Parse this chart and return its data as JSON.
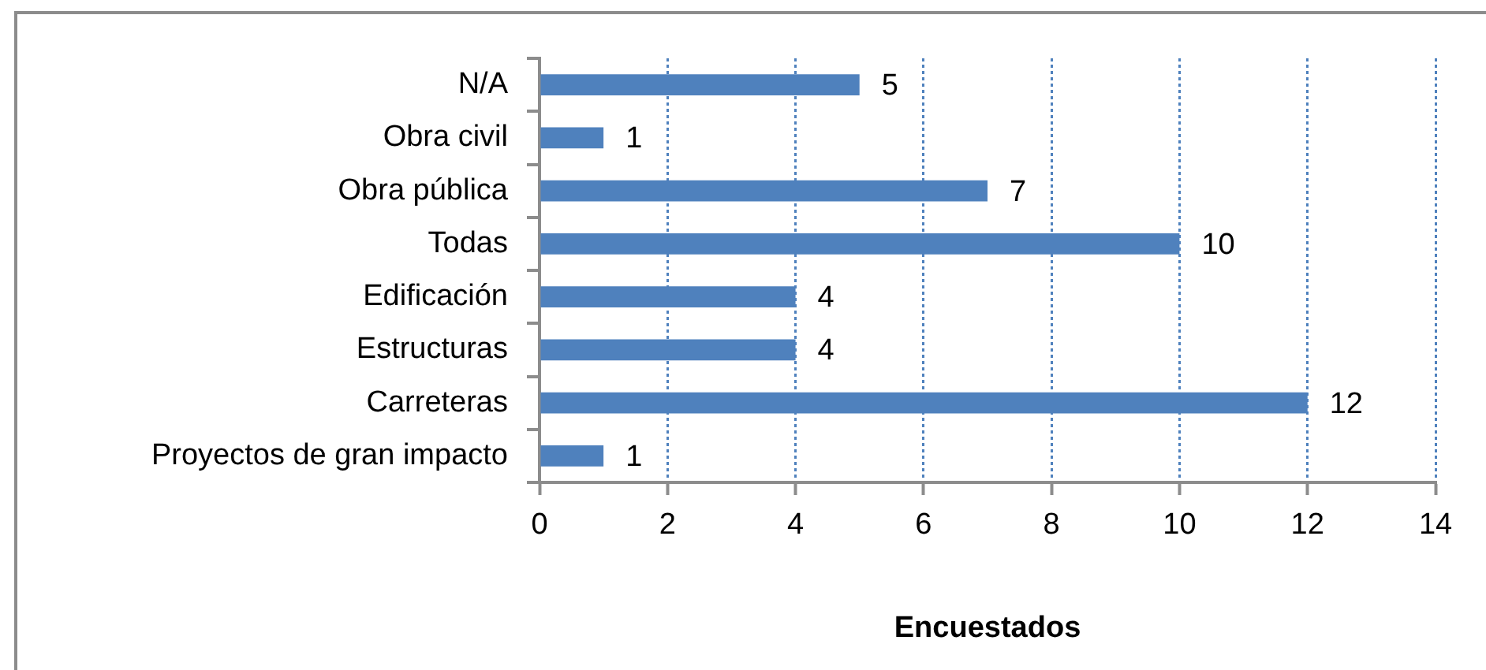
{
  "chart_data": {
    "type": "bar",
    "orientation": "horizontal",
    "categories": [
      "N/A",
      "Obra civil",
      "Obra pública",
      "Todas",
      "Edificación",
      "Estructuras",
      "Carreteras",
      "Proyectos de gran impacto"
    ],
    "values": [
      5,
      1,
      7,
      10,
      4,
      4,
      12,
      1
    ],
    "color": "#4f81bd",
    "xlim": [
      0,
      14
    ],
    "xticks": [
      0,
      2,
      4,
      6,
      8,
      10,
      12,
      14
    ],
    "xlabel": "Encuestados",
    "data_labels": true,
    "grid": "x"
  }
}
